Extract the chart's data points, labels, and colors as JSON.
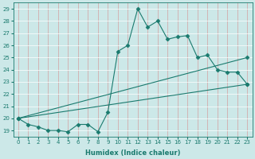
{
  "xlabel": "Humidex (Indice chaleur)",
  "ylabel": "",
  "background_color": "#cce8e8",
  "grid_color": "#e8c8c8",
  "line_color": "#1a7a6e",
  "xlim": [
    -0.5,
    23.5
  ],
  "ylim": [
    18.5,
    29.5
  ],
  "yticks": [
    19,
    20,
    21,
    22,
    23,
    24,
    25,
    26,
    27,
    28,
    29
  ],
  "xticks": [
    0,
    1,
    2,
    3,
    4,
    5,
    6,
    7,
    8,
    9,
    10,
    11,
    12,
    13,
    14,
    15,
    16,
    17,
    18,
    19,
    20,
    21,
    22,
    23
  ],
  "series": [
    {
      "x": [
        0,
        1,
        2,
        3,
        4,
        5,
        6,
        7,
        8,
        9,
        10,
        11,
        12,
        13,
        14,
        15,
        16,
        17,
        18,
        19,
        20,
        21,
        22,
        23
      ],
      "y": [
        20.0,
        19.5,
        19.3,
        19.0,
        19.0,
        18.9,
        19.5,
        19.5,
        18.9,
        20.5,
        25.5,
        26.0,
        29.0,
        27.5,
        28.0,
        26.5,
        26.7,
        26.8,
        25.0,
        25.2,
        24.0,
        23.8,
        23.8,
        22.8
      ],
      "marker": "D",
      "markersize": 2.5
    },
    {
      "x": [
        0,
        23
      ],
      "y": [
        20.0,
        25.0
      ],
      "marker": "D",
      "markersize": 2.5
    },
    {
      "x": [
        0,
        23
      ],
      "y": [
        20.0,
        22.8
      ],
      "marker": "D",
      "markersize": 2.5
    }
  ]
}
